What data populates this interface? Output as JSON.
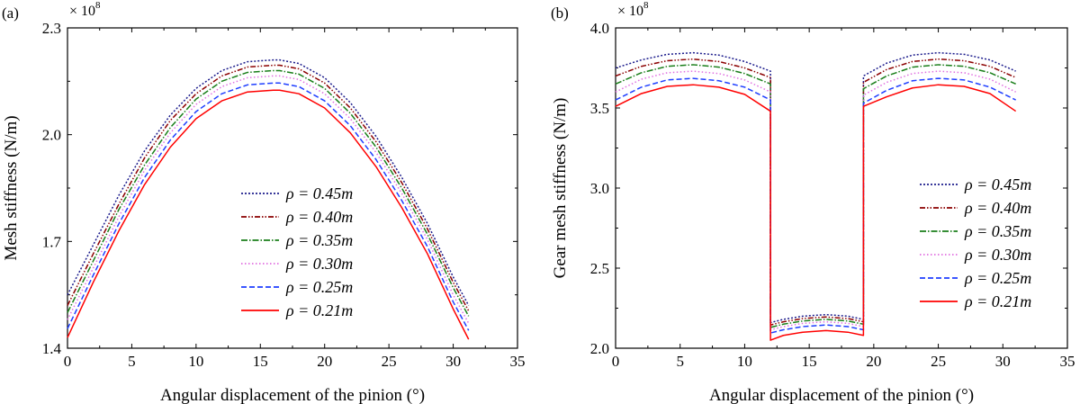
{
  "chart_data": [
    {
      "type": "line",
      "panel_label": "(a)",
      "xlabel": "Angular displacement of the pinion (°)",
      "ylabel": "Mesh stiffness (N/m)",
      "multiplier": "× 10",
      "multiplier_exp": "8",
      "xlim": [
        0,
        35
      ],
      "ylim": [
        1.4,
        2.3
      ],
      "xticks": [
        "0",
        "5",
        "10",
        "15",
        "20",
        "25",
        "30",
        "35"
      ],
      "yticks": [
        "1.4",
        "1.7",
        "2.0",
        "2.3"
      ],
      "legend_position": "center-right",
      "x": [
        0,
        2,
        4,
        6,
        8,
        10,
        12,
        14,
        16,
        16.5,
        18,
        20,
        22,
        24,
        26,
        28,
        30,
        31.2
      ],
      "series": [
        {
          "name": "ρ = 0.45m",
          "rho": "ρ = 0.45",
          "unit": "m",
          "color": "#1c1c8c",
          "dash": "2,2",
          "values": [
            1.55,
            1.69,
            1.83,
            1.955,
            2.055,
            2.13,
            2.18,
            2.205,
            2.21,
            2.21,
            2.2,
            2.16,
            2.09,
            1.995,
            1.88,
            1.75,
            1.6,
            1.52
          ]
        },
        {
          "name": "ρ = 0.40m",
          "rho": "ρ = 0.40",
          "unit": "m",
          "color": "#8b0000",
          "dash": "6,2,1.5,2,1.5,2",
          "values": [
            1.52,
            1.665,
            1.805,
            1.935,
            2.04,
            2.115,
            2.165,
            2.19,
            2.195,
            2.195,
            2.185,
            2.145,
            2.075,
            1.98,
            1.865,
            1.735,
            1.585,
            1.505
          ]
        },
        {
          "name": "ρ = 0.35m",
          "rho": "ρ = 0.35",
          "unit": "m",
          "color": "#1a7f1a",
          "dash": "7,2,1.5,2",
          "values": [
            1.5,
            1.645,
            1.79,
            1.915,
            2.02,
            2.1,
            2.15,
            2.175,
            2.18,
            2.18,
            2.17,
            2.13,
            2.06,
            1.965,
            1.85,
            1.72,
            1.57,
            1.49
          ]
        },
        {
          "name": "ρ = 0.30m",
          "rho": "ρ = 0.30",
          "unit": "m",
          "color": "#e06ee0",
          "dash": "1.5,2.5",
          "values": [
            1.48,
            1.625,
            1.77,
            1.9,
            2.005,
            2.085,
            2.135,
            2.16,
            2.165,
            2.165,
            2.155,
            2.115,
            2.045,
            1.95,
            1.835,
            1.705,
            1.55,
            1.47
          ]
        },
        {
          "name": "ρ = 0.25m",
          "rho": "ρ = 0.25",
          "unit": "m",
          "color": "#1f3fff",
          "dash": "6,3",
          "values": [
            1.455,
            1.605,
            1.75,
            1.88,
            1.985,
            2.065,
            2.115,
            2.14,
            2.145,
            2.145,
            2.135,
            2.095,
            2.025,
            1.93,
            1.815,
            1.685,
            1.53,
            1.45
          ]
        },
        {
          "name": "ρ = 0.21m",
          "rho": "ρ = 0.21",
          "unit": "m",
          "color": "#ff0000",
          "dash": "",
          "values": [
            1.43,
            1.585,
            1.73,
            1.86,
            1.965,
            2.045,
            2.095,
            2.12,
            2.125,
            2.125,
            2.115,
            2.075,
            2.005,
            1.91,
            1.795,
            1.665,
            1.51,
            1.425
          ]
        }
      ]
    },
    {
      "type": "line",
      "panel_label": "(b)",
      "xlabel": "Angular displacement of the pinion (°)",
      "ylabel": "Gear mesh stiffness (N/m)",
      "multiplier": "× 10",
      "multiplier_exp": "8",
      "xlim": [
        0,
        35
      ],
      "ylim": [
        2.0,
        4.0
      ],
      "xticks": [
        "0",
        "5",
        "10",
        "15",
        "20",
        "25",
        "30",
        "35"
      ],
      "yticks": [
        "2.0",
        "2.5",
        "3.0",
        "3.5",
        "4.0"
      ],
      "legend_position": "center-right",
      "x": [
        0,
        2,
        4,
        6,
        8,
        10,
        12,
        12,
        13,
        14.5,
        16.3,
        18,
        19.2,
        19.2,
        21,
        23,
        25,
        27,
        29,
        31
      ],
      "series": [
        {
          "name": "ρ = 0.45m",
          "rho": "ρ = 0.45",
          "unit": "m",
          "color": "#1c1c8c",
          "dash": "2,2",
          "values": [
            3.75,
            3.8,
            3.835,
            3.845,
            3.83,
            3.79,
            3.73,
            2.16,
            2.18,
            2.2,
            2.21,
            2.2,
            2.18,
            3.7,
            3.78,
            3.83,
            3.845,
            3.835,
            3.8,
            3.73
          ]
        },
        {
          "name": "ρ = 0.40m",
          "rho": "ρ = 0.40",
          "unit": "m",
          "color": "#8b0000",
          "dash": "6,2,1.5,2,1.5,2",
          "values": [
            3.7,
            3.76,
            3.795,
            3.805,
            3.79,
            3.75,
            3.69,
            2.145,
            2.165,
            2.185,
            2.195,
            2.185,
            2.165,
            3.66,
            3.74,
            3.79,
            3.805,
            3.795,
            3.76,
            3.69
          ]
        },
        {
          "name": "ρ = 0.35m",
          "rho": "ρ = 0.35",
          "unit": "m",
          "color": "#1a7f1a",
          "dash": "7,2,1.5,2",
          "values": [
            3.65,
            3.72,
            3.76,
            3.77,
            3.755,
            3.715,
            3.65,
            2.13,
            2.15,
            2.17,
            2.18,
            2.17,
            2.15,
            3.62,
            3.7,
            3.755,
            3.77,
            3.76,
            3.72,
            3.65
          ]
        },
        {
          "name": "ρ = 0.30m",
          "rho": "ρ = 0.30",
          "unit": "m",
          "color": "#e06ee0",
          "dash": "1.5,2.5",
          "values": [
            3.6,
            3.68,
            3.72,
            3.73,
            3.715,
            3.675,
            3.6,
            2.115,
            2.135,
            2.155,
            2.165,
            2.155,
            2.135,
            3.58,
            3.66,
            3.715,
            3.73,
            3.72,
            3.68,
            3.6
          ]
        },
        {
          "name": "ρ = 0.25m",
          "rho": "ρ = 0.25",
          "unit": "m",
          "color": "#1f3fff",
          "dash": "6,3",
          "values": [
            3.55,
            3.63,
            3.675,
            3.685,
            3.67,
            3.63,
            3.55,
            2.095,
            2.115,
            2.135,
            2.145,
            2.135,
            2.115,
            3.53,
            3.61,
            3.67,
            3.685,
            3.675,
            3.63,
            3.55
          ]
        },
        {
          "name": "ρ = 0.21m",
          "rho": "ρ = 0.21",
          "unit": "m",
          "color": "#ff0000",
          "dash": "",
          "values": [
            3.51,
            3.59,
            3.635,
            3.645,
            3.63,
            3.585,
            3.48,
            2.05,
            2.08,
            2.1,
            2.11,
            2.1,
            2.08,
            3.51,
            3.57,
            3.625,
            3.645,
            3.635,
            3.59,
            3.48
          ]
        }
      ]
    }
  ]
}
